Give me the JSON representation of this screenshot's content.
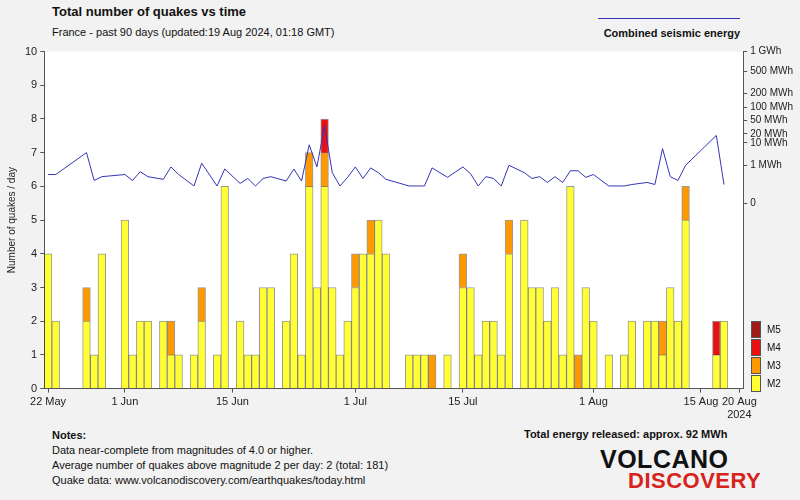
{
  "chart_data": {
    "type": "bar",
    "title": "Total number of quakes vs time",
    "subtitle": "France - past 90 days (updated:19 Aug 2024, 01:18 GMT)",
    "y_label": "Number of quakes / day",
    "categories": [
      "22 May",
      null,
      null,
      null,
      null,
      null,
      null,
      null,
      null,
      null,
      "1 Jun",
      null,
      null,
      null,
      null,
      null,
      null,
      null,
      null,
      null,
      null,
      null,
      null,
      null,
      "15 Jun",
      null,
      null,
      null,
      null,
      null,
      null,
      null,
      null,
      null,
      null,
      null,
      null,
      null,
      null,
      null,
      "1 Jul",
      null,
      null,
      null,
      null,
      null,
      null,
      null,
      null,
      null,
      null,
      null,
      null,
      null,
      "15 Jul",
      null,
      null,
      null,
      null,
      null,
      null,
      null,
      null,
      null,
      null,
      null,
      null,
      null,
      null,
      null,
      null,
      "1 Aug",
      null,
      null,
      null,
      null,
      null,
      null,
      null,
      null,
      null,
      null,
      null,
      null,
      null,
      "15 Aug",
      null,
      null,
      null,
      null,
      "20 Aug 2024"
    ],
    "series": [
      {
        "name": "M2",
        "type": "bar",
        "color": "#ffff33",
        "values": [
          4,
          2,
          0,
          0,
          0,
          2,
          1,
          4,
          0,
          0,
          5,
          1,
          2,
          2,
          0,
          2,
          1,
          1,
          0,
          1,
          2,
          0,
          1,
          6,
          0,
          2,
          1,
          1,
          3,
          3,
          0,
          2,
          4,
          1,
          6,
          3,
          6,
          3,
          1,
          2,
          3,
          4,
          4,
          5,
          4,
          0,
          0,
          1,
          1,
          1,
          0,
          0,
          1,
          0,
          3,
          3,
          1,
          2,
          2,
          1,
          4,
          0,
          5,
          3,
          3,
          2,
          3,
          1,
          6,
          0,
          3,
          2,
          0,
          1,
          0,
          1,
          2,
          0,
          2,
          2,
          1,
          3,
          2,
          5,
          0,
          0,
          0,
          1,
          2,
          0,
          0
        ]
      },
      {
        "name": "M3",
        "type": "bar",
        "color": "#ff9900",
        "values": [
          0,
          0,
          0,
          0,
          0,
          1,
          0,
          0,
          0,
          0,
          0,
          0,
          0,
          0,
          0,
          0,
          1,
          0,
          0,
          0,
          1,
          0,
          0,
          0,
          0,
          0,
          0,
          0,
          0,
          0,
          0,
          0,
          0,
          0,
          1,
          0,
          1,
          0,
          0,
          0,
          1,
          0,
          1,
          0,
          0,
          0,
          0,
          0,
          0,
          0,
          1,
          0,
          0,
          0,
          1,
          0,
          0,
          0,
          0,
          0,
          1,
          0,
          0,
          0,
          0,
          0,
          0,
          0,
          0,
          1,
          0,
          0,
          0,
          0,
          0,
          0,
          0,
          0,
          0,
          0,
          1,
          0,
          0,
          1,
          0,
          0,
          0,
          0,
          0,
          0,
          0
        ]
      },
      {
        "name": "M4",
        "type": "bar",
        "color": "#e81010",
        "values": [
          0,
          0,
          0,
          0,
          0,
          0,
          0,
          0,
          0,
          0,
          0,
          0,
          0,
          0,
          0,
          0,
          0,
          0,
          0,
          0,
          0,
          0,
          0,
          0,
          0,
          0,
          0,
          0,
          0,
          0,
          0,
          0,
          0,
          0,
          0,
          0,
          1,
          0,
          0,
          0,
          0,
          0,
          0,
          0,
          0,
          0,
          0,
          0,
          0,
          0,
          0,
          0,
          0,
          0,
          0,
          0,
          0,
          0,
          0,
          0,
          0,
          0,
          0,
          0,
          0,
          0,
          0,
          0,
          0,
          0,
          0,
          0,
          0,
          0,
          0,
          0,
          0,
          0,
          0,
          0,
          0,
          0,
          0,
          0,
          0,
          0,
          0,
          1,
          0,
          0,
          0
        ]
      },
      {
        "name": "M5",
        "type": "bar",
        "color": "#a11a1a",
        "values": [
          0,
          0,
          0,
          0,
          0,
          0,
          0,
          0,
          0,
          0,
          0,
          0,
          0,
          0,
          0,
          0,
          0,
          0,
          0,
          0,
          0,
          0,
          0,
          0,
          0,
          0,
          0,
          0,
          0,
          0,
          0,
          0,
          0,
          0,
          0,
          0,
          0,
          0,
          0,
          0,
          0,
          0,
          0,
          0,
          0,
          0,
          0,
          0,
          0,
          0,
          0,
          0,
          0,
          0,
          0,
          0,
          0,
          0,
          0,
          0,
          0,
          0,
          0,
          0,
          0,
          0,
          0,
          0,
          0,
          0,
          0,
          0,
          0,
          0,
          0,
          0,
          0,
          0,
          0,
          0,
          0,
          0,
          0,
          0,
          0,
          0,
          0,
          0,
          0,
          0,
          0
        ]
      },
      {
        "name": "Combined seismic energy",
        "type": "line",
        "axis": "y2",
        "color": "#3535b5",
        "values": [
          0.25,
          0.25,
          null,
          null,
          null,
          4.2,
          0.08,
          0.17,
          null,
          null,
          0.25,
          0.08,
          0.4,
          0.17,
          null,
          0.1,
          0.8,
          0.25,
          null,
          0.02,
          1.3,
          null,
          0.02,
          0.6,
          null,
          0.04,
          0.12,
          0.02,
          0.12,
          0.17,
          null,
          0.07,
          0.6,
          0.07,
          8.6,
          0.8,
          35,
          0.34,
          0.02,
          0.15,
          0.8,
          0.12,
          0.7,
          0.34,
          0.1,
          null,
          null,
          0.02,
          0.02,
          0.02,
          0.7,
          null,
          0.15,
          null,
          0.8,
          0.29,
          0.02,
          0.17,
          0.12,
          0.02,
          1.0,
          null,
          0.34,
          0.12,
          0.17,
          0.05,
          0.17,
          0.05,
          0.46,
          0.46,
          0.15,
          0.25,
          null,
          0.02,
          null,
          0.02,
          0.03,
          null,
          0.05,
          0.03,
          6.1,
          0.17,
          0.08,
          1.0,
          null,
          null,
          null,
          18,
          0.03,
          null,
          null
        ]
      }
    ],
    "stacked": true,
    "grid": false,
    "legend": "right",
    "ylim": [
      0,
      10
    ],
    "yticks": [
      0,
      1,
      2,
      3,
      4,
      5,
      6,
      7,
      8,
      9,
      10
    ],
    "y2lim": [
      -2700,
      1000
    ],
    "y2ticks": [
      0,
      {
        "value": 1,
        "label": "1 MWh"
      },
      {
        "value": 10,
        "label": "10 MWh"
      },
      {
        "value": 20,
        "label": "20 MWh"
      },
      {
        "value": 50,
        "label": "50 MWh"
      },
      {
        "value": 100,
        "label": "100 MWh"
      },
      {
        "value": 200,
        "label": "200 MWh"
      },
      {
        "value": 500,
        "label": "500 MWh"
      },
      {
        "value": 1000,
        "label": "1 GWh"
      }
    ],
    "notes_title": "Notes:",
    "notes": [
      "Data near-complete from magnitudes of 4.0 or higher.",
      "Average number of quakes above magnitude 2 per day: 2 (total: 181)",
      "Quake data: www.volcanodiscovery.com/earthquakes/today.html"
    ],
    "energy_total": "Total energy released: approx. 92 MWh",
    "logo": [
      "VOLCANO",
      "DISCOVERY"
    ]
  }
}
